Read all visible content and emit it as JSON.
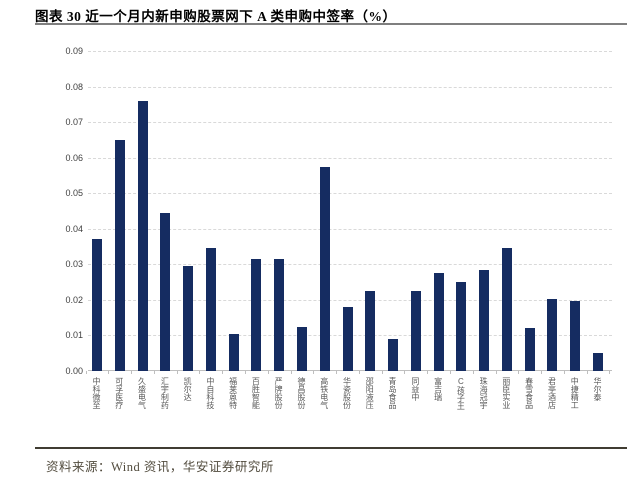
{
  "figure": {
    "title": "图表 30 近一个月内新申购股票网下 A 类申购中签率（%）",
    "source": "资料来源：Wind 资讯，华安证券研究所"
  },
  "colors": {
    "bar": "#152c61",
    "gridline": "#d9d9d9",
    "axis_line": "#bfbfbf",
    "y_tick_text": "#404040",
    "x_label_text": "#595959",
    "title_text": "#000000",
    "source_text": "#524c3e",
    "top_rule": "#7f7f7f",
    "bottom_rule": "#403c32"
  },
  "chart_data": {
    "type": "bar",
    "title": "近一个月内新申购股票网下A类申购中签率（%）",
    "xlabel": "",
    "ylabel": "",
    "ylim": [
      0,
      0.09
    ],
    "ytick_step": 0.01,
    "yticks": [
      "0.00",
      "0.01",
      "0.02",
      "0.03",
      "0.04",
      "0.05",
      "0.06",
      "0.07",
      "0.08",
      "0.09"
    ],
    "grid": "horizontal-dashed",
    "legend": "none",
    "categories": [
      "中科微至",
      "可孚医疗",
      "久盛电气",
      "汇宇制药",
      "凯尔达",
      "中自科技",
      "福莱蒽特",
      "百胜智能",
      "严牌股份",
      "德昌股份",
      "高铁电气",
      "华瓷股份",
      "邵阳液压",
      "青岛食品",
      "同益中",
      "富吉瑞",
      "C孩子王",
      "珠海冠宇",
      "丽臣实业",
      "春雪食品",
      "君亭酒店",
      "中捷精工",
      "华尔泰"
    ],
    "values": [
      0.037,
      0.065,
      0.076,
      0.0445,
      0.0295,
      0.0345,
      0.0105,
      0.0315,
      0.0315,
      0.0125,
      0.0575,
      0.018,
      0.0225,
      0.009,
      0.0225,
      0.0275,
      0.025,
      0.0285,
      0.0345,
      0.012,
      0.0202,
      0.0198,
      0.005
    ]
  }
}
